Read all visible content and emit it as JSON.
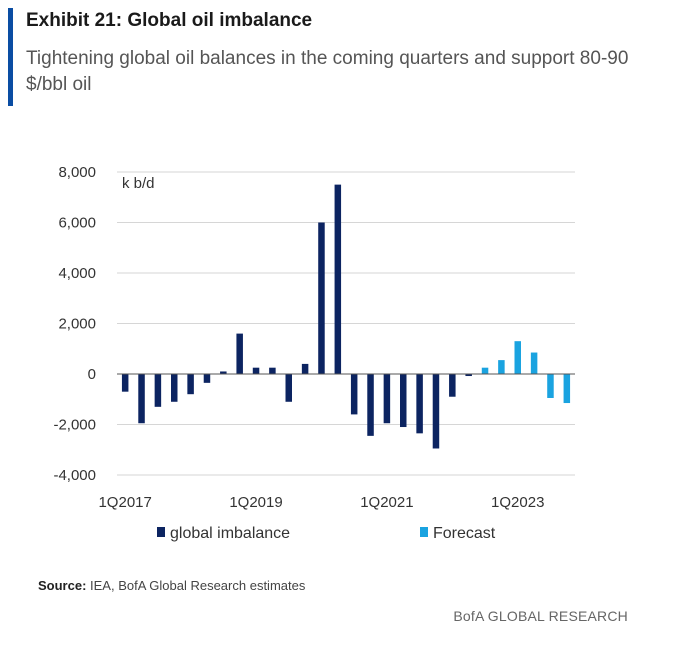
{
  "header": {
    "title": "Exhibit 21: Global oil imbalance",
    "subtitle": "Tightening global oil balances in the coming quarters and support 80-90 $/bbl oil"
  },
  "footer": {
    "source_label": "Source:",
    "source_text": " IEA, BofA Global Research estimates",
    "brand": "BofA GLOBAL RESEARCH"
  },
  "chart_data": {
    "type": "bar",
    "unit_label": "k b/d",
    "ylim": [
      -4000,
      8000
    ],
    "yticks": [
      8000,
      6000,
      4000,
      2000,
      0,
      -2000,
      -4000
    ],
    "ytick_labels": [
      "8,000",
      "6,000",
      "4,000",
      "2,000",
      "0",
      "-2,000",
      "-4,000"
    ],
    "grid": true,
    "legend_position": "bottom",
    "categories": [
      "1Q2017",
      "2Q2017",
      "3Q2017",
      "4Q2017",
      "1Q2018",
      "2Q2018",
      "3Q2018",
      "4Q2018",
      "1Q2019",
      "2Q2019",
      "3Q2019",
      "4Q2019",
      "1Q2020",
      "2Q2020",
      "3Q2020",
      "4Q2020",
      "1Q2021",
      "2Q2021",
      "3Q2021",
      "4Q2021",
      "1Q2022",
      "2Q2022",
      "3Q2022",
      "4Q2022",
      "1Q2023",
      "2Q2023",
      "3Q2023",
      "4Q2023"
    ],
    "xtick_labels": [
      {
        "index": 0,
        "label": "1Q2017"
      },
      {
        "index": 8,
        "label": "1Q2019"
      },
      {
        "index": 16,
        "label": "1Q2021"
      },
      {
        "index": 24,
        "label": "1Q2023"
      }
    ],
    "series": [
      {
        "name": "global imbalance",
        "color": "#0c2461",
        "values": [
          -700,
          -1950,
          -1300,
          -1100,
          -800,
          -350,
          100,
          1600,
          250,
          250,
          -1100,
          400,
          6000,
          7500,
          -1600,
          -2450,
          -1950,
          -2100,
          -2350,
          -2950,
          -900,
          -80,
          null,
          null,
          null,
          null,
          null,
          null
        ]
      },
      {
        "name": "Forecast",
        "color": "#1aa3e0",
        "values": [
          null,
          null,
          null,
          null,
          null,
          null,
          null,
          null,
          null,
          null,
          null,
          null,
          null,
          null,
          null,
          null,
          null,
          null,
          null,
          null,
          null,
          null,
          250,
          550,
          1300,
          850,
          -950,
          -1150
        ]
      }
    ]
  }
}
